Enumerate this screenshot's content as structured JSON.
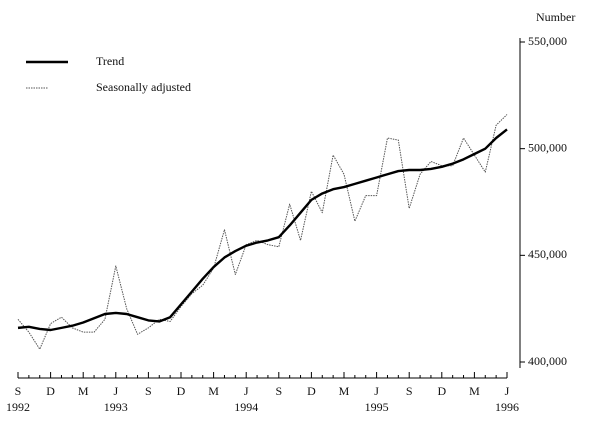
{
  "chart_data": {
    "type": "line",
    "y_axis_label": "Number",
    "categories": [
      "S",
      null,
      null,
      "D",
      null,
      null,
      "M",
      null,
      null,
      "J",
      null,
      null,
      "S",
      null,
      null,
      "D",
      null,
      null,
      "M",
      null,
      null,
      "J",
      null,
      null,
      "S",
      null,
      null,
      "D",
      null,
      null,
      "M",
      null,
      null,
      "J",
      null,
      null,
      "S",
      null,
      null,
      "D",
      null,
      null,
      "M",
      null,
      null,
      "J"
    ],
    "year_labels": [
      "1992",
      null,
      null,
      null,
      null,
      null,
      null,
      null,
      null,
      "1993",
      null,
      null,
      null,
      null,
      null,
      null,
      null,
      null,
      null,
      null,
      null,
      "1994",
      null,
      null,
      null,
      null,
      null,
      null,
      null,
      null,
      null,
      null,
      null,
      "1995",
      null,
      null,
      null,
      null,
      null,
      null,
      null,
      null,
      null,
      null,
      null,
      "1996"
    ],
    "series": [
      {
        "name": "Trend",
        "color": "#000000",
        "style": "solid",
        "values": [
          416000,
          416500,
          415500,
          415000,
          416000,
          417000,
          418500,
          420500,
          422500,
          423000,
          422500,
          421000,
          419500,
          419000,
          421000,
          427000,
          433000,
          439000,
          444500,
          449000,
          452000,
          454500,
          456000,
          457000,
          458500,
          464000,
          470000,
          476000,
          479000,
          481000,
          482000,
          483500,
          485000,
          486500,
          488000,
          489500,
          490000,
          490000,
          490500,
          491500,
          493000,
          495000,
          497500,
          500000,
          505000,
          509000
        ]
      },
      {
        "name": "Seasonally adjusted",
        "color": "#555555",
        "style": "dotted",
        "values": [
          420000,
          414000,
          406000,
          418000,
          421000,
          416000,
          414000,
          414000,
          420000,
          445000,
          425000,
          413000,
          416000,
          420000,
          419000,
          426000,
          432000,
          436000,
          444000,
          462000,
          441000,
          455000,
          457000,
          455000,
          454000,
          474000,
          457000,
          480000,
          470000,
          497000,
          488000,
          466000,
          478000,
          478000,
          505000,
          504000,
          472000,
          488000,
          494000,
          492000,
          492000,
          505000,
          497000,
          489000,
          511000,
          516000
        ]
      }
    ],
    "ylim": [
      400000,
      550000
    ],
    "yticks": [
      {
        "value": 400000,
        "label": "400,000"
      },
      {
        "value": 450000,
        "label": "450,000"
      },
      {
        "value": 500000,
        "label": "500,000"
      },
      {
        "value": 550000,
        "label": "550,000"
      }
    ],
    "y_axis_side": "right",
    "legend": "top-left",
    "grid": false
  }
}
